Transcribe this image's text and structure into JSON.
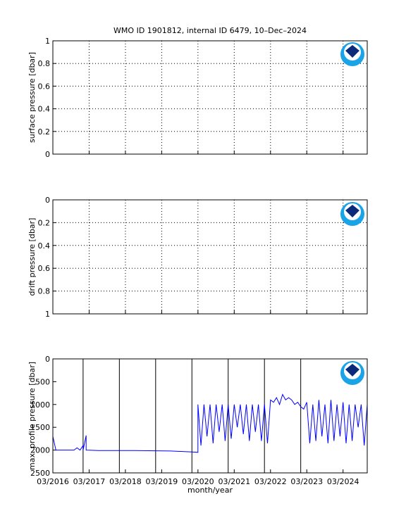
{
  "chart_data": [
    {
      "type": "line",
      "title": "WMO ID 1901812, internal ID 6479, 10–Dec–2024",
      "ylabel": "surface pressure [dbar]",
      "xlim": [
        "2016-03",
        "2024-11"
      ],
      "xticks": [
        "2016-03",
        "2017-03",
        "2018-03",
        "2019-03",
        "2020-03",
        "2021-03",
        "2022-03",
        "2023-03",
        "2024-03"
      ],
      "ylim": [
        0,
        1
      ],
      "yticks": [
        0,
        0.2,
        0.4,
        0.6,
        0.8,
        1
      ],
      "yreverse": false,
      "grid": true
    },
    {
      "type": "line",
      "ylabel": "drift pressure [dbar]",
      "xlim": [
        "2016-03",
        "2024-11"
      ],
      "xticks": [
        "2016-03",
        "2017-03",
        "2018-03",
        "2019-03",
        "2020-03",
        "2021-03",
        "2022-03",
        "2023-03",
        "2024-03"
      ],
      "ylim": [
        0,
        1
      ],
      "yticks": [
        0,
        0.2,
        0.4,
        0.6,
        0.8,
        1
      ],
      "yreverse": true,
      "grid": true
    },
    {
      "type": "line",
      "ylabel": "max. profile pressure [dbar]",
      "xlabel": "month/year",
      "color": "#0000ff",
      "xlim": [
        "2016-03",
        "2024-11"
      ],
      "xticks": [
        {
          "value": "2016-03",
          "label": "03/2016"
        },
        {
          "value": "2017-03",
          "label": "03/2017"
        },
        {
          "value": "2018-03",
          "label": "03/2018"
        },
        {
          "value": "2019-03",
          "label": "03/2019"
        },
        {
          "value": "2020-03",
          "label": "03/2020"
        },
        {
          "value": "2021-03",
          "label": "03/2021"
        },
        {
          "value": "2022-03",
          "label": "03/2022"
        },
        {
          "value": "2023-03",
          "label": "03/2023"
        },
        {
          "value": "2024-03",
          "label": "03/2024"
        }
      ],
      "ylim": [
        0,
        2500
      ],
      "yticks": [
        0,
        500,
        1000,
        1500,
        2000,
        2500
      ],
      "yreverse": true,
      "grid": false,
      "year_lines": [
        "2017-01",
        "2018-01",
        "2019-01",
        "2020-01",
        "2021-01",
        "2022-01",
        "2023-01"
      ],
      "x": [
        "2016-03",
        "2016-03",
        "2016-04",
        "2016-10",
        "2016-11",
        "2016-12",
        "2017-01",
        "2017-01",
        "2017-02",
        "2017-02",
        "2017-06",
        "2018-06",
        "2019-06",
        "2020-01",
        "2020-03",
        "2020-03",
        "2020-04",
        "2020-05",
        "2020-06",
        "2020-07",
        "2020-08",
        "2020-09",
        "2020-10",
        "2020-11",
        "2020-12",
        "2021-01",
        "2021-02",
        "2021-03",
        "2021-04",
        "2021-05",
        "2021-06",
        "2021-07",
        "2021-08",
        "2021-09",
        "2021-10",
        "2021-11",
        "2021-12",
        "2022-01",
        "2022-02",
        "2022-03",
        "2022-04",
        "2022-05",
        "2022-06",
        "2022-07",
        "2022-08",
        "2022-09",
        "2022-10",
        "2022-11",
        "2022-12",
        "2023-01",
        "2023-02",
        "2023-03",
        "2023-04",
        "2023-05",
        "2023-06",
        "2023-07",
        "2023-08",
        "2023-09",
        "2023-10",
        "2023-11",
        "2023-12",
        "2024-01",
        "2024-02",
        "2024-03",
        "2024-04",
        "2024-05",
        "2024-06",
        "2024-07",
        "2024-08",
        "2024-09",
        "2024-10",
        "2024-11"
      ],
      "values": [
        0,
        1700,
        2000,
        2000,
        1950,
        2000,
        1900,
        2000,
        1680,
        2000,
        2010,
        2010,
        2020,
        2040,
        2050,
        1000,
        1900,
        1000,
        1700,
        1000,
        1850,
        1000,
        1600,
        1000,
        1800,
        1000,
        1750,
        1000,
        1500,
        1000,
        1650,
        1000,
        1800,
        1000,
        1600,
        1000,
        1800,
        1000,
        1850,
        900,
        950,
        850,
        1000,
        780,
        900,
        850,
        900,
        1000,
        950,
        1050,
        1100,
        950,
        1850,
        1000,
        1800,
        900,
        1700,
        1000,
        1850,
        900,
        1800,
        1000,
        1700,
        950,
        1850,
        1000,
        1800,
        1000,
        1500,
        1000,
        1900,
        1000
      ]
    }
  ]
}
